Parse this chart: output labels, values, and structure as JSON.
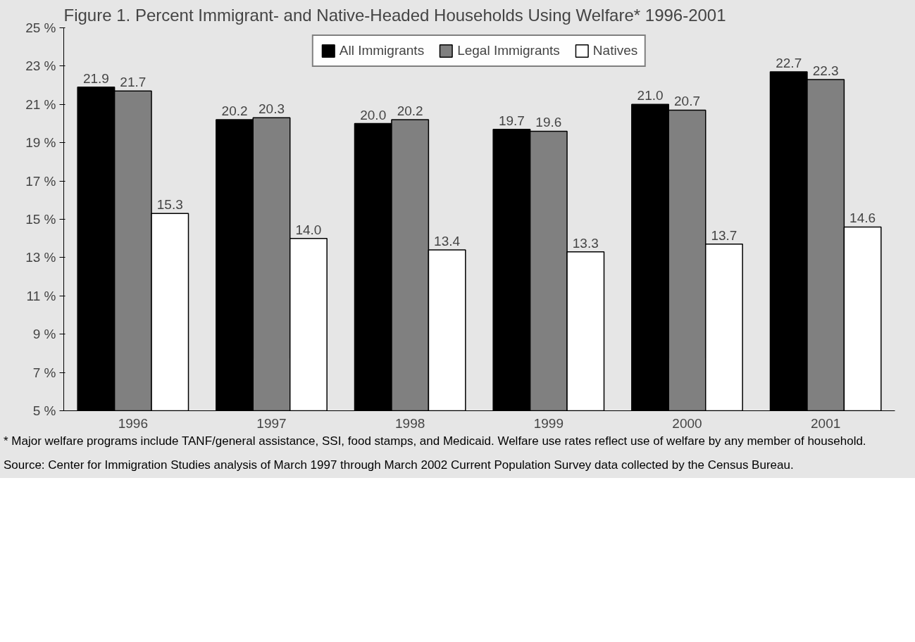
{
  "chart_data": {
    "type": "bar",
    "title": "Figure 1. Percent Immigrant- and Native-Headed Households Using Welfare* 1996-2001",
    "categories": [
      "1996",
      "1997",
      "1998",
      "1999",
      "2000",
      "2001"
    ],
    "series": [
      {
        "name": "All Immigrants",
        "color": "#000000",
        "values": [
          21.9,
          20.2,
          20.0,
          19.7,
          21.0,
          22.7
        ],
        "value_labels": [
          "21.9",
          "20.2",
          "20.0",
          "19.7",
          "21.0",
          "22.7"
        ]
      },
      {
        "name": "Legal Immigrants",
        "color": "#808080",
        "values": [
          21.7,
          20.3,
          20.2,
          19.6,
          20.7,
          22.3
        ],
        "value_labels": [
          "21.7",
          "20.3",
          "20.2",
          "19.6",
          "20.7",
          "22.3"
        ]
      },
      {
        "name": "Natives",
        "color": "#ffffff",
        "values": [
          15.3,
          14.0,
          13.4,
          13.3,
          13.7,
          14.6
        ],
        "value_labels": [
          "15.3",
          "14.0",
          "13.4",
          "13.3",
          "13.7",
          "14.6"
        ]
      }
    ],
    "ylim": [
      5,
      25
    ],
    "yticks": [
      {
        "value": 5,
        "label": "5 %"
      },
      {
        "value": 7,
        "label": "7 %"
      },
      {
        "value": 9,
        "label": "9 %"
      },
      {
        "value": 11,
        "label": "11 %"
      },
      {
        "value": 13,
        "label": "13 %"
      },
      {
        "value": 15,
        "label": "15 %"
      },
      {
        "value": 17,
        "label": "17 %"
      },
      {
        "value": 19,
        "label": "19 %"
      },
      {
        "value": 21,
        "label": "21 %"
      },
      {
        "value": 23,
        "label": "23 %"
      },
      {
        "value": 25,
        "label": "25 %"
      }
    ],
    "legend": "top",
    "annotations": [
      "* Major welfare programs include TANF/general assistance, SSI, food stamps, and Medicaid. Welfare use rates reflect use of welfare by any member of household.",
      "Source: Center for Immigration Studies analysis of March 1997 through March 2002 Current Population Survey data collected by the Census Bureau."
    ]
  }
}
